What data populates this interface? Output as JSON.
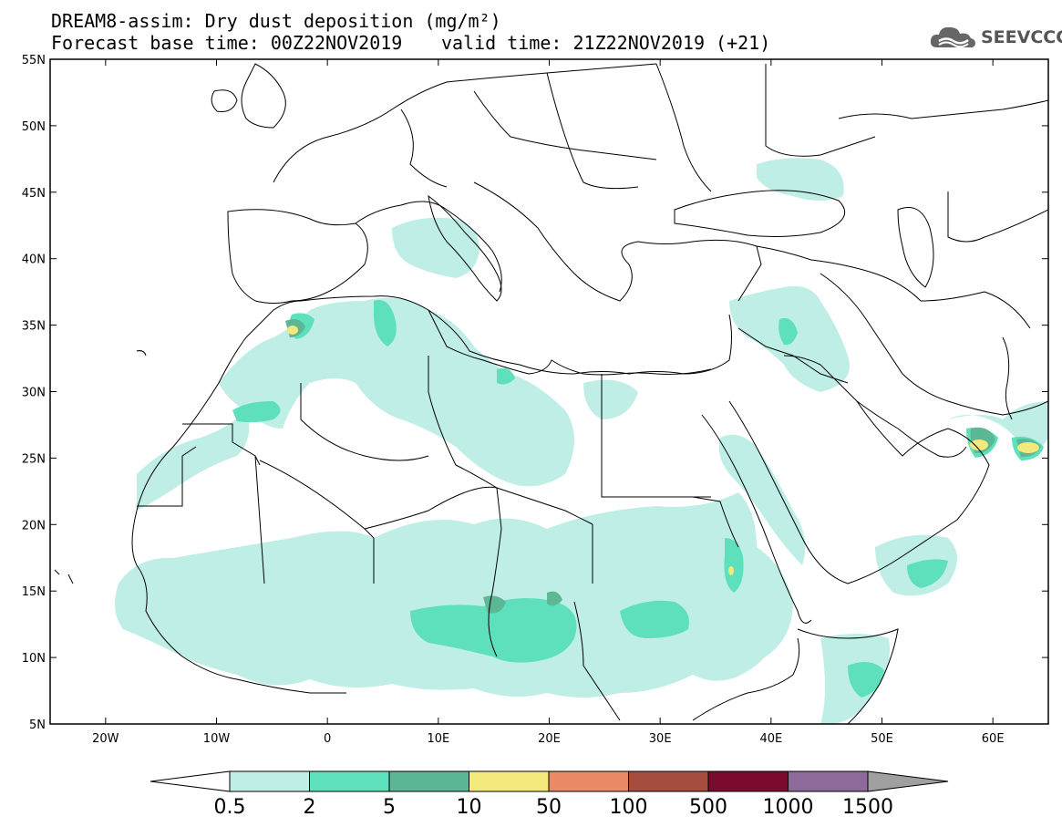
{
  "title": {
    "line1": "DREAM8-assim: Dry dust deposition (mg/m²)",
    "line2": "Forecast base time: 00Z22NOV2019",
    "valid": "valid time: 21Z22NOV2019 (+21)"
  },
  "logo": {
    "text": "SEEVCCC",
    "icon": "cloud-logo-icon"
  },
  "map": {
    "region": "North Africa, Europe and Middle East",
    "lon_range": [
      -25,
      65
    ],
    "lat_range": [
      5,
      55
    ],
    "lat_ticks": [
      "55N",
      "50N",
      "45N",
      "40N",
      "35N",
      "30N",
      "25N",
      "20N",
      "15N",
      "10N",
      "5N"
    ],
    "lon_ticks": [
      "20W",
      "10W",
      "0",
      "10E",
      "20E",
      "30E",
      "40E",
      "50E",
      "60E"
    ]
  },
  "colorbar": {
    "labels": [
      "0.5",
      "2",
      "5",
      "10",
      "50",
      "100",
      "500",
      "1000",
      "1500"
    ],
    "colors": [
      "#bfeee6",
      "#5de0bb",
      "#5cb894",
      "#f3e97c",
      "#ea8a66",
      "#a64d40",
      "#7a0b2e",
      "#8d6a9a"
    ],
    "low_arrow_color": "#ffffff",
    "high_arrow_color": "#a0a0a0"
  }
}
